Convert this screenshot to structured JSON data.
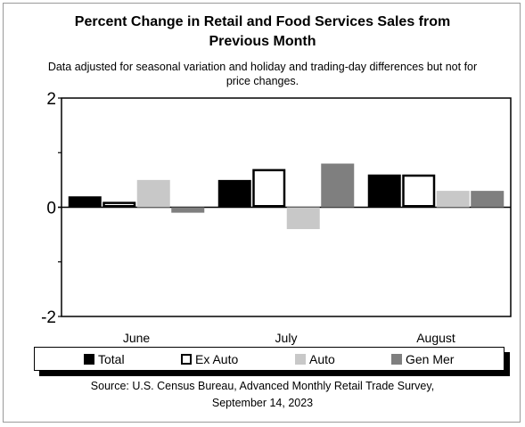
{
  "chart_data": {
    "type": "bar",
    "title_lines": [
      "Percent Change in Retail and Food Services Sales from",
      "Previous Month"
    ],
    "subtitle_lines": [
      "Data adjusted for seasonal variation and holiday and trading-day differences but not for",
      "price changes."
    ],
    "categories": [
      "June",
      "July",
      "August"
    ],
    "series": [
      {
        "name": "Total",
        "values": [
          0.2,
          0.5,
          0.6
        ],
        "color": "#000000",
        "outline": "#000000"
      },
      {
        "name": "Ex Auto",
        "values": [
          0.1,
          0.7,
          0.6
        ],
        "color": "#ffffff",
        "outline": "#000000"
      },
      {
        "name": "Auto",
        "values": [
          0.5,
          -0.4,
          0.3
        ],
        "color": "#c8c8c8",
        "outline": "#c8c8c8"
      },
      {
        "name": "Gen Mer",
        "values": [
          -0.1,
          0.8,
          0.3
        ],
        "color": "#7f7f7f",
        "outline": "#7f7f7f"
      }
    ],
    "yticks": [
      "2",
      "0",
      "-2"
    ],
    "ylim": [
      -2,
      2
    ],
    "legend_position": "bottom",
    "grid": false,
    "source_lines": [
      "Source: U.S. Census Bureau, Advanced Monthly Retail Trade Survey,",
      "September 14, 2023"
    ]
  }
}
